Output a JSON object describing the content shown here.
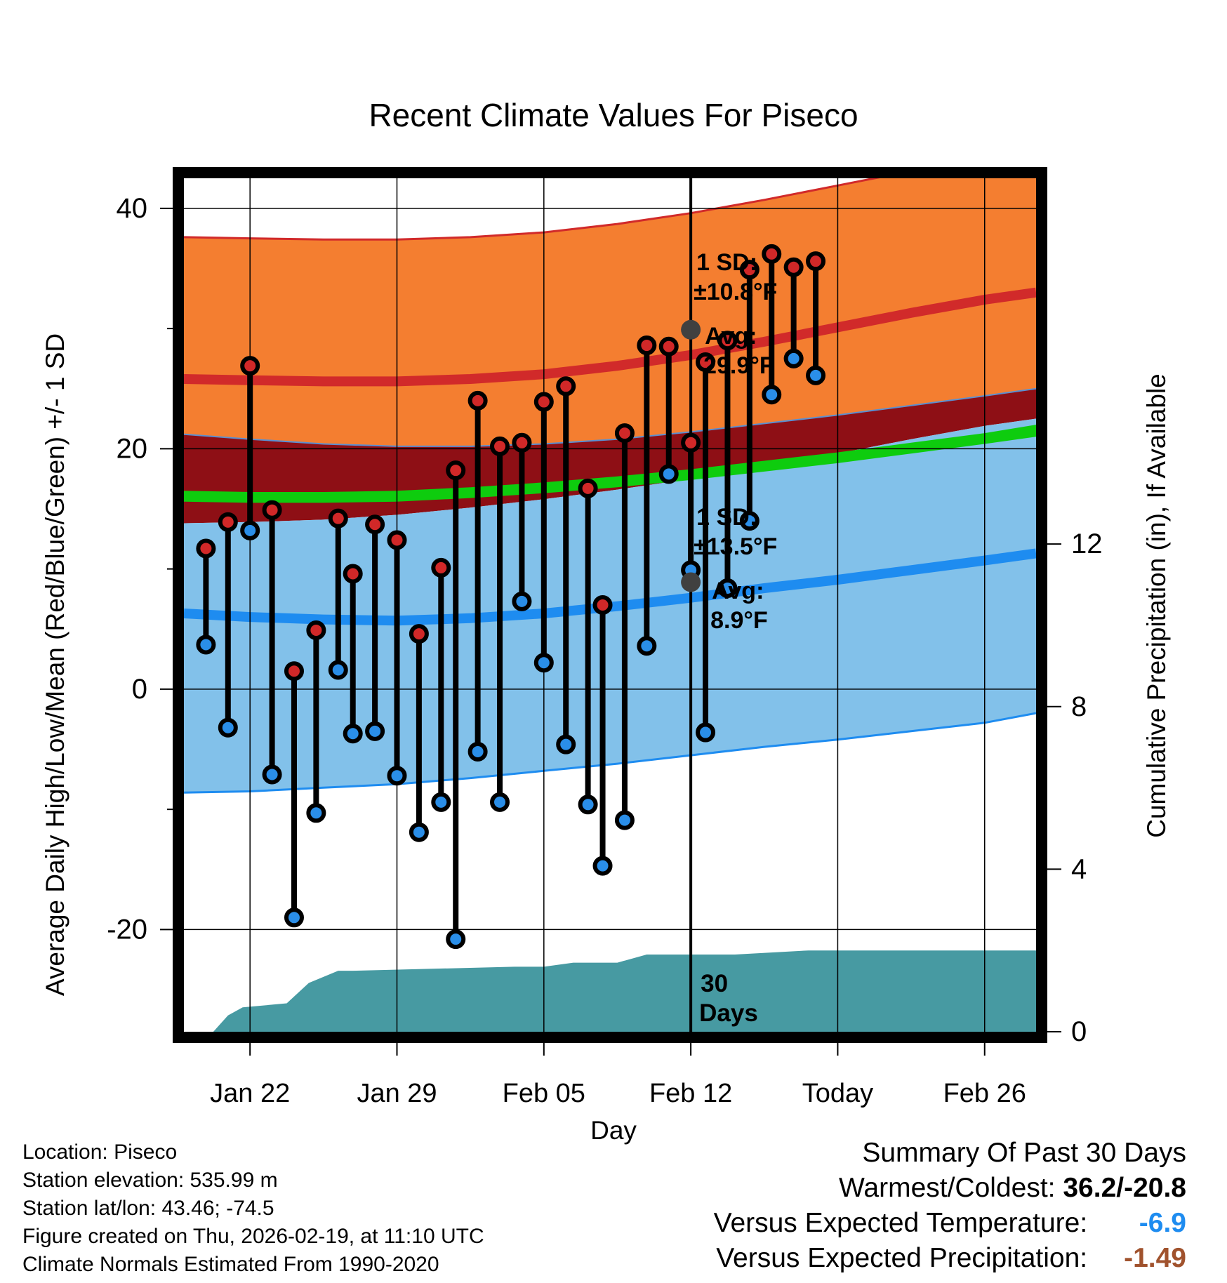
{
  "chart_data": {
    "type": "line",
    "title": "Recent Climate Values For Piseco",
    "xlabel": "Day",
    "ylabel": "Average Daily High/Low/Mean (Red/Blue/Green) +/- 1 SD",
    "y2label": "Cumulative Precipitation (in), If Available",
    "xlim": [
      -4.5,
      53.5
    ],
    "ylim": [
      -28.5,
      42.5
    ],
    "y2lim": [
      0,
      21
    ],
    "today_index": 30,
    "x_ticks": [
      {
        "x": 0,
        "label": "Jan 22"
      },
      {
        "x": 10,
        "label": "Jan 29"
      },
      {
        "x": 20,
        "label": "Feb 05"
      },
      {
        "x": 30,
        "label": "Feb 12"
      },
      {
        "x": 40,
        "label": "Today"
      },
      {
        "x": 50,
        "label": "Feb 26"
      }
    ],
    "y_ticks": [
      {
        "y": -20,
        "label": "-20"
      },
      {
        "y": 0,
        "label": "0"
      },
      {
        "y": 20,
        "label": "20"
      },
      {
        "y": 40,
        "label": "40"
      }
    ],
    "y2_ticks": [
      {
        "y": 0,
        "label": "0"
      },
      {
        "y": 4,
        "label": "4"
      },
      {
        "y": 8,
        "label": "8"
      },
      {
        "y": 12,
        "label": "12"
      }
    ],
    "normal_x": [
      -4.5,
      0,
      5,
      10,
      15,
      20,
      25,
      30,
      35,
      40,
      45,
      50,
      53.5
    ],
    "normal_high": [
      25.8,
      25.7,
      25.6,
      25.6,
      25.8,
      26.2,
      26.9,
      27.8,
      28.9,
      30.1,
      31.3,
      32.4,
      33.0
    ],
    "normal_high_sd_top": [
      37.6,
      37.5,
      37.4,
      37.4,
      37.6,
      38.0,
      38.7,
      39.6,
      40.7,
      41.9,
      43.1,
      44.2,
      44.8
    ],
    "normal_high_sd_bottom": [
      21.2,
      20.8,
      20.4,
      20.2,
      20.2,
      20.4,
      20.8,
      21.4,
      22.1,
      22.8,
      23.6,
      24.4,
      25.0
    ],
    "normal_mean_top": [
      16.5,
      16.4,
      16.4,
      16.5,
      16.8,
      17.2,
      17.7,
      18.3,
      19.0,
      19.7,
      20.5,
      21.3,
      22.0
    ],
    "normal_mean_bottom": [
      15.6,
      15.5,
      15.5,
      15.6,
      15.9,
      16.3,
      16.8,
      17.4,
      18.1,
      18.8,
      19.6,
      20.4,
      21.0
    ],
    "normal_low_sd_top": [
      13.8,
      13.9,
      14.1,
      14.5,
      15.1,
      15.8,
      16.6,
      17.5,
      18.5,
      19.6,
      20.8,
      21.9,
      22.5
    ],
    "normal_low": [
      6.3,
      6.0,
      5.8,
      5.7,
      5.9,
      6.3,
      6.9,
      7.6,
      8.4,
      9.1,
      9.9,
      10.7,
      11.3
    ],
    "normal_low_sd_bottom": [
      -8.6,
      -8.5,
      -8.2,
      -7.9,
      -7.4,
      -6.8,
      -6.2,
      -5.5,
      -4.8,
      -4.2,
      -3.5,
      -2.8,
      -2.0
    ],
    "days": [
      {
        "x": -3,
        "high": 11.7,
        "low": 3.7
      },
      {
        "x": -1.5,
        "high": 13.9,
        "low": -3.2
      },
      {
        "x": 0,
        "high": 26.9,
        "low": 13.2
      },
      {
        "x": 1.5,
        "high": 14.9,
        "low": -7.1
      },
      {
        "x": 3,
        "high": 1.5,
        "low": -19.0
      },
      {
        "x": 4.5,
        "high": 4.9,
        "low": -10.3
      },
      {
        "x": 6,
        "high": 14.2,
        "low": 1.6
      },
      {
        "x": 7,
        "high": 9.6,
        "low": -3.7
      },
      {
        "x": 8.5,
        "high": 13.7,
        "low": -3.5
      },
      {
        "x": 10,
        "high": 12.4,
        "low": -7.2
      },
      {
        "x": 11.5,
        "high": 4.6,
        "low": -11.9
      },
      {
        "x": 13,
        "high": 10.1,
        "low": -9.4
      },
      {
        "x": 14,
        "high": 18.2,
        "low": -20.8
      },
      {
        "x": 15.5,
        "high": 24.0,
        "low": -5.2
      },
      {
        "x": 17,
        "high": 20.2,
        "low": -9.4
      },
      {
        "x": 18.5,
        "high": 20.5,
        "low": 7.3
      },
      {
        "x": 20,
        "high": 23.9,
        "low": 2.2
      },
      {
        "x": 21.5,
        "high": 25.2,
        "low": -4.6
      },
      {
        "x": 23,
        "high": 16.7,
        "low": -9.6
      },
      {
        "x": 24,
        "high": 7.0,
        "low": -14.7
      },
      {
        "x": 25.5,
        "high": 21.3,
        "low": -10.9
      },
      {
        "x": 27,
        "high": 28.6,
        "low": 3.6
      },
      {
        "x": 28.5,
        "high": 28.5,
        "low": 17.9
      },
      {
        "x": 30,
        "high": 20.5,
        "low": 9.9
      },
      {
        "x": 31,
        "high": 27.2,
        "low": -3.6
      },
      {
        "x": 32.5,
        "high": 29.0,
        "low": 8.4
      },
      {
        "x": 34,
        "high": 34.9,
        "low": 14.0
      },
      {
        "x": 35.5,
        "high": 36.2,
        "low": 24.5
      },
      {
        "x": 37,
        "high": 35.1,
        "low": 27.5
      },
      {
        "x": 38.5,
        "high": 35.6,
        "low": 26.1
      }
    ],
    "precip": [
      {
        "x": -2.5,
        "y": 0.0
      },
      {
        "x": -1.5,
        "y": 0.4
      },
      {
        "x": -0.5,
        "y": 0.6
      },
      {
        "x": 2.5,
        "y": 0.7
      },
      {
        "x": 4,
        "y": 1.2
      },
      {
        "x": 6,
        "y": 1.5
      },
      {
        "x": 7,
        "y": 1.5
      },
      {
        "x": 18,
        "y": 1.6
      },
      {
        "x": 20,
        "y": 1.6
      },
      {
        "x": 22,
        "y": 1.7
      },
      {
        "x": 25,
        "y": 1.7
      },
      {
        "x": 27,
        "y": 1.9
      },
      {
        "x": 33,
        "y": 1.9
      },
      {
        "x": 38,
        "y": 2.0
      },
      {
        "x": 53.5,
        "y": 2.0
      }
    ],
    "annotations": {
      "high_sd_label_1": "1 SD:",
      "high_sd_label_2": "±10.8°F",
      "high_avg_label_1": "Avg:",
      "high_avg_label_2": "29.9°F",
      "high_avg_value": 29.9,
      "low_sd_label_1": "1 SD:",
      "low_sd_label_2": "±13.5°F",
      "low_avg_label_1": "Avg:",
      "low_avg_label_2": "8.9°F",
      "low_avg_value": 8.9,
      "days_label_1": "30",
      "days_label_2": "Days"
    }
  },
  "colors": {
    "high_band": "#f47e30",
    "high_line": "#d12a2a",
    "dark_band": "#8e0f15",
    "mean_band": "#0ecc0e",
    "low_band": "#82c1ea",
    "low_line": "#1e8cf0",
    "precip": "#479aa2",
    "high_dot": "#d12828",
    "low_dot": "#2a8ee8",
    "avg_dot": "#404040",
    "annotation": "#474747",
    "temp_departure": "#1e8cf0",
    "precip_departure": "#a0522d"
  },
  "meta": {
    "location": "Location: Piseco",
    "elevation": "Station elevation: 535.99 m",
    "latlon": "Station lat/lon: 43.46; -74.5",
    "created": "Figure created on Thu, 2026-02-19, at 11:10 UTC",
    "normals": "Climate Normals Estimated From 1990-2020"
  },
  "summary": {
    "title": "Summary Of Past 30 Days",
    "warmest_label": "Warmest/Coldest:",
    "warmest_value": "36.2/-20.8",
    "temp_label": "Versus Expected Temperature:",
    "temp_value": "-6.9",
    "precip_label": "Versus Expected Precipitation:",
    "precip_value": "-1.49"
  }
}
